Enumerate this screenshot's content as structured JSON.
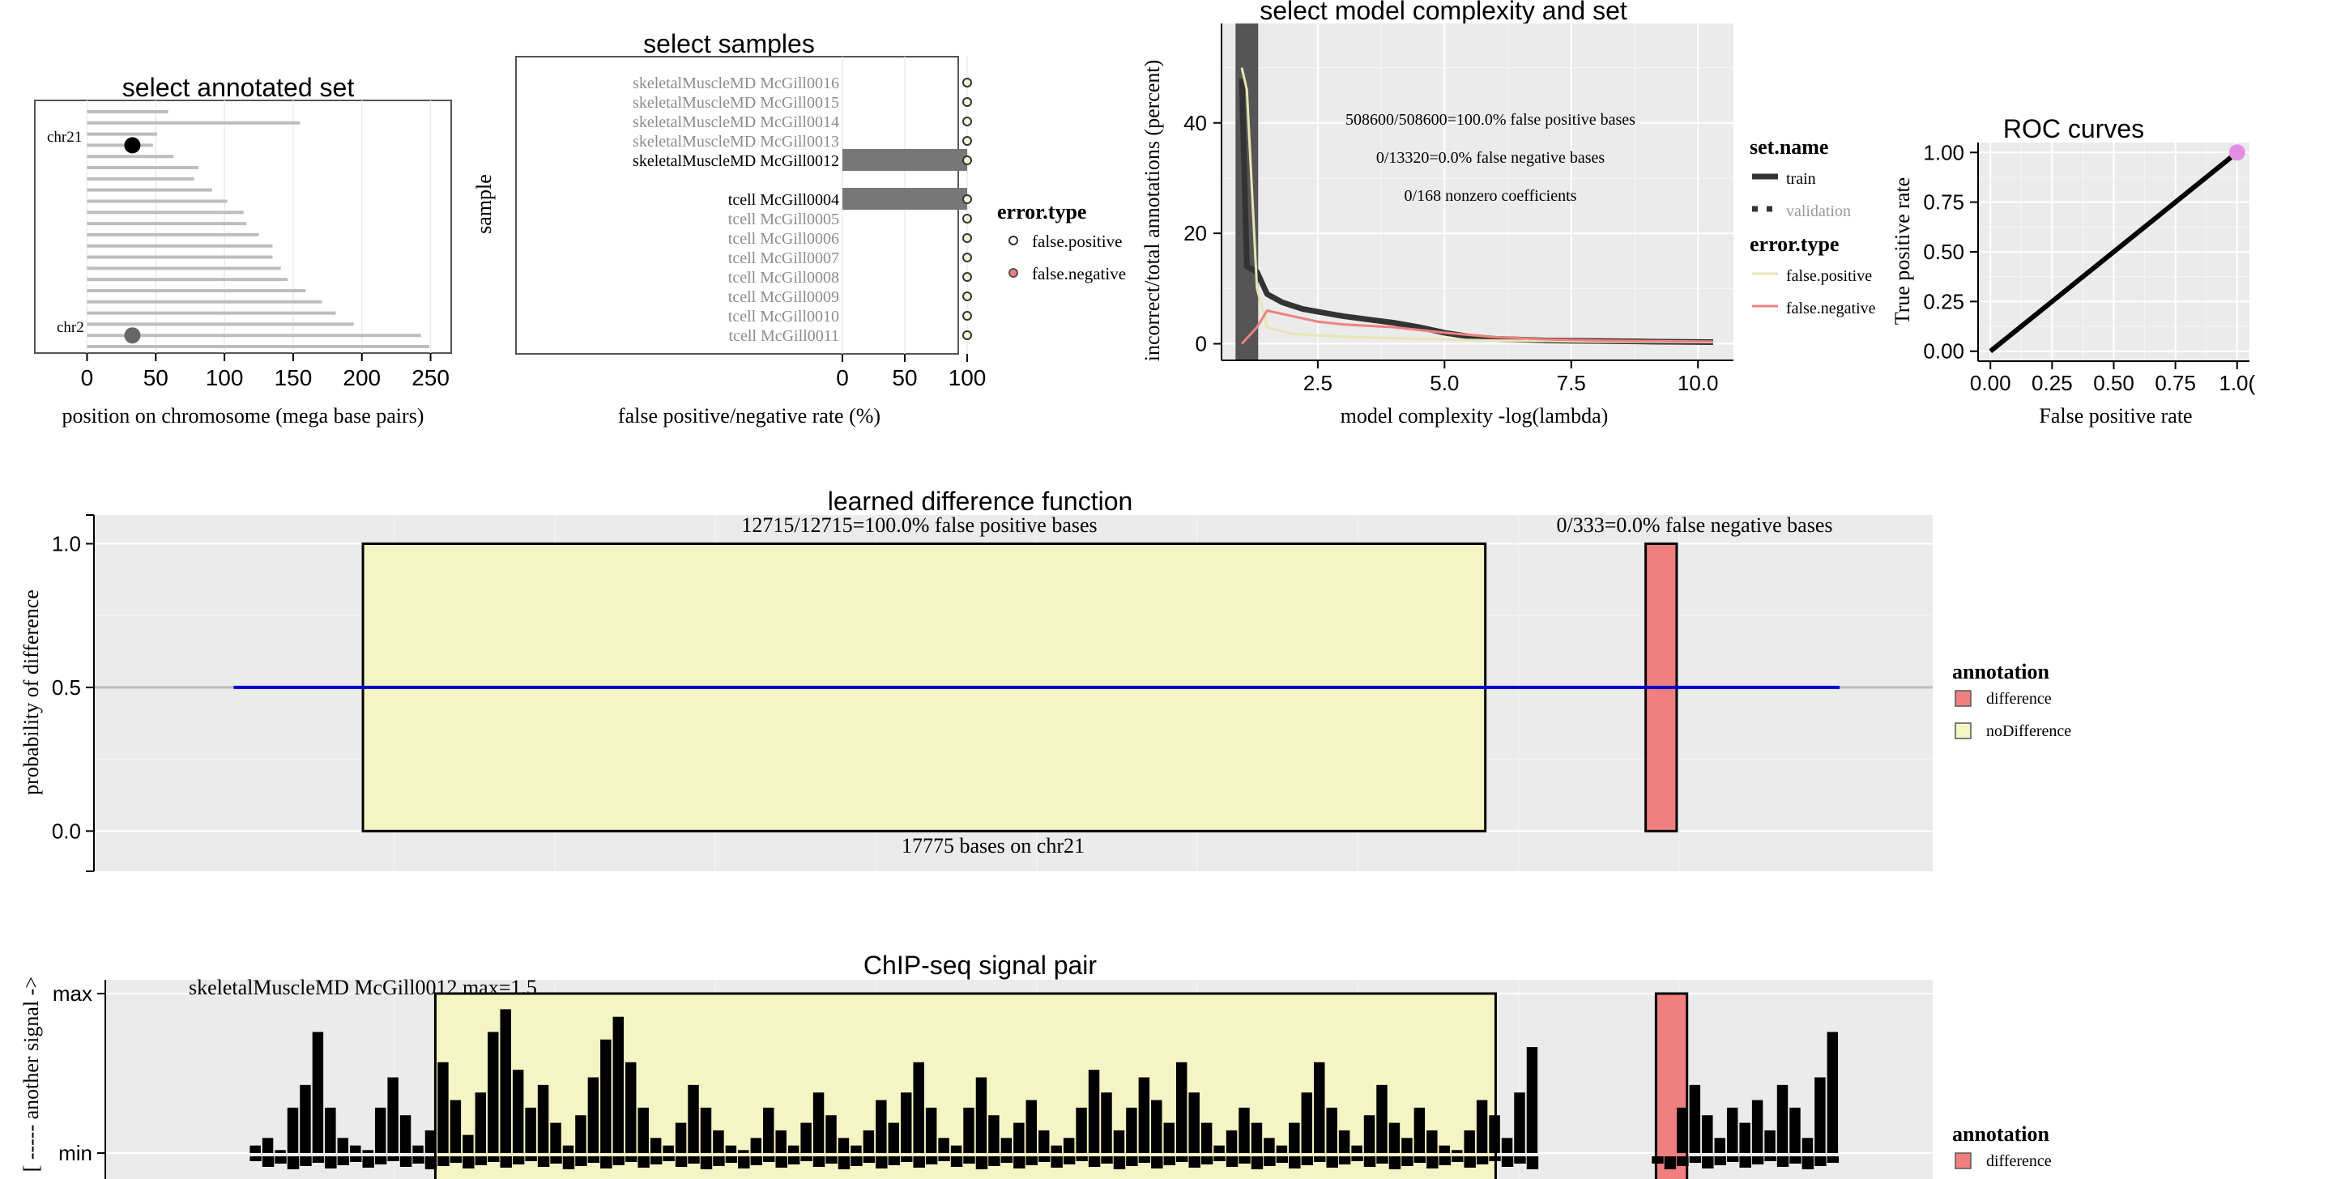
{
  "chart_data": [
    {
      "id": "annotated_set",
      "type": "dot-range",
      "title": "select annotated set",
      "xlabel": "position on chromosome (mega base pairs)",
      "xlim": [
        -38,
        265
      ],
      "xticks": [
        0,
        50,
        100,
        150,
        200,
        250
      ],
      "chromosome_lengths_mb": [
        59,
        155,
        51,
        48,
        63,
        81,
        78,
        91,
        102,
        114,
        116,
        125,
        135,
        135,
        141,
        146,
        159,
        171,
        181,
        194,
        243,
        249
      ],
      "labels": [
        {
          "text": "chr21",
          "row": 3
        },
        {
          "text": "chr2",
          "row": 20
        }
      ],
      "points": [
        {
          "chrom": "chr21",
          "row": 3,
          "x": 33,
          "color": "#000000"
        },
        {
          "chrom": "chr2",
          "row": 20,
          "x": 33,
          "color": "#666666"
        }
      ]
    },
    {
      "id": "samples",
      "type": "bar",
      "title": "select samples",
      "xlabel": "false positive/negative rate (%)",
      "ylabel": "sample",
      "xlim": [
        0,
        100
      ],
      "xticks": [
        0,
        50,
        100
      ],
      "groups": [
        {
          "samples": [
            "skeletalMuscleMD McGill0016",
            "skeletalMuscleMD McGill0015",
            "skeletalMuscleMD McGill0014",
            "skeletalMuscleMD McGill0013",
            "skeletalMuscleMD McGill0012"
          ]
        },
        {
          "samples": [
            "tcell McGill0004",
            "tcell McGill0005",
            "tcell McGill0006",
            "tcell McGill0007",
            "tcell McGill0008",
            "tcell McGill0009",
            "tcell McGill0010",
            "tcell McGill0011"
          ]
        }
      ],
      "selected": [
        "skeletalMuscleMD McGill0012",
        "tcell McGill0004"
      ],
      "values_percent": {
        "skeletalMuscleMD McGill0016": 100,
        "skeletalMuscleMD McGill0015": 100,
        "skeletalMuscleMD McGill0014": 100,
        "skeletalMuscleMD McGill0013": 100,
        "skeletalMuscleMD McGill0012": 100,
        "tcell McGill0004": 100,
        "tcell McGill0005": 100,
        "tcell McGill0006": 100,
        "tcell McGill0007": 100,
        "tcell McGill0008": 100,
        "tcell McGill0009": 100,
        "tcell McGill0010": 100,
        "tcell McGill0011": 100
      },
      "legend": {
        "title": "error.type",
        "entries": [
          {
            "label": "false.positive",
            "color": "#e8e8b8"
          },
          {
            "label": "false.negative",
            "color": "#f08080"
          }
        ]
      }
    },
    {
      "id": "complexity",
      "type": "line",
      "title": "select model complexity and set",
      "xlabel": "model complexity -log(lambda)",
      "ylabel": "incorrect/total annotations (percent)",
      "xlim": [
        0.6,
        10.7
      ],
      "ylim": [
        -3,
        58
      ],
      "xticks": [
        2.5,
        5.0,
        7.5,
        10.0
      ],
      "xtick_labels": [
        "2.5",
        "5.0",
        "7.5",
        "10.0"
      ],
      "yticks": [
        0,
        20,
        40
      ],
      "selected_x": 1.1,
      "annotations": [
        "508600/508600=100.0% false positive bases",
        "0/13320=0.0% false negative bases",
        "0/168 nonzero coefficients"
      ],
      "series": [
        {
          "name": "train",
          "x": [
            1.0,
            1.1,
            1.3,
            1.5,
            1.8,
            2.2,
            2.5,
            3.0,
            3.5,
            4.0,
            4.5,
            5.0,
            5.5,
            6.0,
            7.0,
            8.0,
            9.0,
            10.3
          ],
          "y": [
            48,
            14,
            13,
            9,
            7.5,
            6.3,
            5.8,
            5.0,
            4.4,
            3.8,
            3.0,
            2.0,
            1.3,
            0.9,
            0.6,
            0.5,
            0.4,
            0.3
          ],
          "color": "#333333",
          "width": 7
        },
        {
          "name": "validation false.positive",
          "x": [
            1.0,
            1.1,
            1.3,
            1.5,
            2.0,
            2.5,
            3.0,
            4.0,
            5.0,
            6.0,
            7.0,
            8.0,
            9.0,
            10.3
          ],
          "y": [
            50,
            46,
            10,
            3,
            1.8,
            1.5,
            1.3,
            1.0,
            0.8,
            0.6,
            0.5,
            0.4,
            0.35,
            0.3
          ],
          "color": "#e6e6b3",
          "width": 3
        },
        {
          "name": "validation false.negative",
          "x": [
            1.0,
            1.1,
            1.3,
            1.5,
            2.0,
            2.5,
            3.0,
            4.0,
            5.0,
            6.0,
            7.0,
            8.0,
            9.0,
            10.3
          ],
          "y": [
            0,
            1,
            3,
            6,
            5,
            4,
            3.5,
            3,
            2,
            1.2,
            0.8,
            0.6,
            0.5,
            0.4
          ],
          "color": "#f08080",
          "width": 3
        }
      ],
      "legend": {
        "set_title": "set.name",
        "set_entries": [
          "train",
          "validation"
        ],
        "error_title": "error.type",
        "error_entries": [
          {
            "label": "false.positive",
            "color": "#e6e6b3"
          },
          {
            "label": "false.negative",
            "color": "#f08080"
          }
        ]
      }
    },
    {
      "id": "roc",
      "type": "line",
      "title": "ROC curves",
      "xlabel": "False positive rate",
      "ylabel": "True positive rate",
      "xlim": [
        -0.05,
        1.05
      ],
      "ylim": [
        -0.05,
        1.05
      ],
      "ticks": [
        0.0,
        0.25,
        0.5,
        0.75,
        1.0
      ],
      "tick_labels": [
        "0.00",
        "0.25",
        "0.50",
        "0.75",
        "1.00"
      ],
      "xtick_labels_shown": [
        "0.00",
        "0.25",
        "0.50",
        "0.75",
        "1.0("
      ],
      "series": [
        {
          "name": "roc",
          "x": [
            0,
            1
          ],
          "y": [
            0,
            1
          ],
          "color": "#000000"
        }
      ],
      "point": {
        "x": 1.0,
        "y": 1.0,
        "color": "#e38de3"
      }
    },
    {
      "id": "difference",
      "type": "area",
      "title": "learned difference function",
      "ylabel": "probability of difference",
      "ylim": [
        -0.14,
        1.1
      ],
      "yticks": [
        0.0,
        0.5,
        1.0
      ],
      "ytick_labels": [
        "0.0",
        "0.5",
        "1.0"
      ],
      "xlim": [
        0,
        17775
      ],
      "line_extent": [
        1350,
        16875
      ],
      "line_value": 0.5,
      "regions": [
        {
          "annotation": "noDifference",
          "start": 2600,
          "end": 13450
        },
        {
          "annotation": "difference",
          "start": 15000,
          "end": 15300
        }
      ],
      "top_left_text": "12715/12715=100.0% false positive bases",
      "top_right_text": "0/333=0.0% false negative bases",
      "bottom_text": "17775 bases on chr21",
      "legend": {
        "title": "annotation",
        "entries": [
          {
            "label": "difference",
            "color": "#f08080"
          },
          {
            "label": "noDifference",
            "color": "#f5f4c4"
          }
        ]
      }
    },
    {
      "id": "signal",
      "type": "bar",
      "title": "ChIP-seq signal pair",
      "ylabel": "[ ----- another signal ->",
      "yticks": [
        "max",
        "min"
      ],
      "sample_label": "skeletalMuscleMD McGill0012 max=1.5",
      "xlim": [
        0,
        17775
      ],
      "track_extent": [
        1350,
        16875
      ],
      "regions": [
        {
          "annotation": "noDifference",
          "start": 3300,
          "end": 13550
        },
        {
          "annotation": "difference",
          "start": 15100,
          "end": 15400
        }
      ],
      "upper_signal_values": [
        0.05,
        0.1,
        0.02,
        0.3,
        0.45,
        0.8,
        0.3,
        0.1,
        0.05,
        0.02,
        0.3,
        0.5,
        0.25,
        0.05,
        0.15,
        0.6,
        0.35,
        0.12,
        0.4,
        0.8,
        0.95,
        0.55,
        0.3,
        0.45,
        0.2,
        0.05,
        0.25,
        0.5,
        0.75,
        0.9,
        0.6,
        0.3,
        0.1,
        0.05,
        0.2,
        0.45,
        0.3,
        0.15,
        0.05,
        0.02,
        0.1,
        0.3,
        0.15,
        0.05,
        0.2,
        0.4,
        0.25,
        0.1,
        0.05,
        0.15,
        0.35,
        0.2,
        0.4,
        0.6,
        0.3,
        0.1,
        0.05,
        0.3,
        0.5,
        0.25,
        0.1,
        0.2,
        0.35,
        0.15,
        0.05,
        0.1,
        0.3,
        0.55,
        0.4,
        0.15,
        0.3,
        0.5,
        0.35,
        0.2,
        0.6,
        0.4,
        0.2,
        0.05,
        0.15,
        0.3,
        0.2,
        0.1,
        0.05,
        0.2,
        0.4,
        0.6,
        0.3,
        0.15,
        0.05,
        0.25,
        0.45,
        0.2,
        0.1,
        0.3,
        0.15,
        0.05,
        0.02,
        0.15,
        0.35,
        0.25,
        0.1,
        0.4,
        0.7,
        0.35,
        0.15,
        0.3,
        0.2,
        0.05,
        0.1,
        0.2,
        0.1,
        0.05,
        0.0,
        0.0,
        0.3,
        0.45,
        0.25,
        0.1,
        0.3,
        0.2,
        0.35,
        0.15,
        0.45,
        0.3,
        0.1,
        0.5,
        0.8
      ]
    }
  ]
}
